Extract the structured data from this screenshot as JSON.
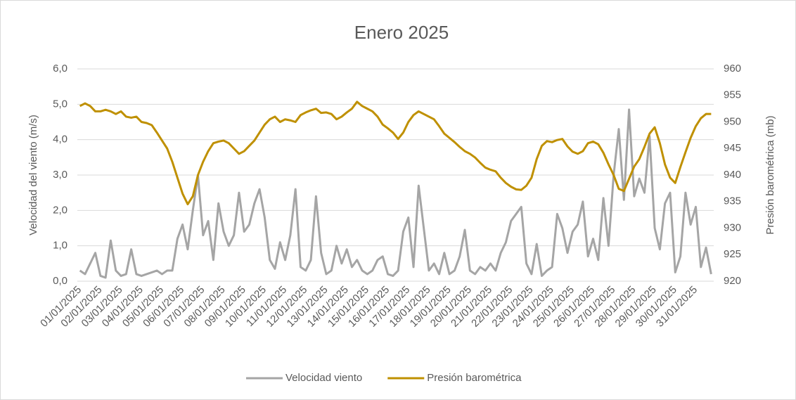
{
  "chart_data": {
    "type": "line",
    "title": "Enero 2025",
    "ylabel": "Velocidad del viento (m/s)",
    "y2label": "Presión barométrica (mb)",
    "categories": [
      "01/01/2025",
      null,
      null,
      null,
      "02/01/2025",
      null,
      null,
      null,
      "03/01/2025",
      null,
      null,
      null,
      "04/01/2025",
      null,
      null,
      null,
      "05/01/2025",
      null,
      null,
      null,
      "06/01/2025",
      null,
      null,
      null,
      "07/01/2025",
      null,
      null,
      null,
      "08/01/2025",
      null,
      null,
      null,
      "09/01/2025",
      null,
      null,
      null,
      "10/01/2025",
      null,
      null,
      null,
      "11/01/2025",
      null,
      null,
      null,
      "12/01/2025",
      null,
      null,
      null,
      "13/01/2025",
      null,
      null,
      null,
      "14/01/2025",
      null,
      null,
      null,
      "15/01/2025",
      null,
      null,
      null,
      "16/01/2025",
      null,
      null,
      null,
      "17/01/2025",
      null,
      null,
      null,
      "18/01/2025",
      null,
      null,
      null,
      "19/01/2025",
      null,
      null,
      null,
      "20/01/2025",
      null,
      null,
      null,
      "21/01/2025",
      null,
      null,
      null,
      "22/01/2025",
      null,
      null,
      null,
      "23/01/2025",
      null,
      null,
      null,
      "24/01/2025",
      null,
      null,
      null,
      "25/01/2025",
      null,
      null,
      null,
      "26/01/2025",
      null,
      null,
      null,
      "27/01/2025",
      null,
      null,
      null,
      "28/01/2025",
      null,
      null,
      null,
      "29/01/2025",
      null,
      null,
      null,
      "30/01/2025",
      null,
      null,
      null,
      "31/01/2025",
      null,
      null,
      null
    ],
    "series": [
      {
        "name": "Velocidad viento",
        "color": "#a5a5a5",
        "axis": "y",
        "values": [
          0.3,
          0.2,
          0.5,
          0.8,
          0.15,
          0.1,
          1.15,
          0.3,
          0.15,
          0.2,
          0.9,
          0.2,
          0.15,
          0.2,
          0.25,
          0.3,
          0.2,
          0.3,
          0.3,
          1.2,
          1.6,
          0.9,
          2.0,
          3.0,
          1.3,
          1.7,
          0.6,
          2.2,
          1.4,
          1.0,
          1.3,
          2.5,
          1.4,
          1.6,
          2.2,
          2.6,
          1.8,
          0.6,
          0.35,
          1.1,
          0.6,
          1.3,
          2.6,
          0.4,
          0.3,
          0.6,
          2.4,
          0.8,
          0.2,
          0.3,
          1.0,
          0.5,
          0.9,
          0.4,
          0.6,
          0.3,
          0.2,
          0.3,
          0.6,
          0.7,
          0.2,
          0.15,
          0.3,
          1.4,
          1.8,
          0.4,
          2.7,
          1.5,
          0.3,
          0.5,
          0.2,
          0.8,
          0.2,
          0.3,
          0.7,
          1.45,
          0.3,
          0.2,
          0.4,
          0.3,
          0.5,
          0.3,
          0.8,
          1.1,
          1.7,
          1.9,
          2.1,
          0.5,
          0.2,
          1.05,
          0.15,
          0.3,
          0.4,
          1.9,
          1.5,
          0.8,
          1.4,
          1.6,
          2.25,
          0.7,
          1.2,
          0.6,
          2.35,
          1.0,
          3.0,
          4.3,
          2.3,
          4.85,
          2.4,
          2.9,
          2.5,
          4.1,
          1.5,
          0.9,
          2.2,
          2.5,
          0.25,
          0.7,
          2.5,
          1.6,
          2.1,
          0.4,
          0.95,
          0.2
        ]
      },
      {
        "name": "Presión barométrica",
        "color": "#bf9000",
        "axis": "y2",
        "values": [
          953,
          953.5,
          953,
          952,
          952,
          952.3,
          952,
          951.5,
          952,
          951,
          950.8,
          951,
          950,
          949.8,
          949.4,
          948,
          946.5,
          945,
          942.5,
          939.5,
          936.5,
          934.5,
          936,
          940,
          942.5,
          944.5,
          946,
          946.3,
          946.5,
          946,
          945,
          944,
          944.5,
          945.5,
          946.5,
          948,
          949.5,
          950.5,
          951,
          950,
          950.5,
          950.3,
          950,
          951.3,
          951.8,
          952.2,
          952.5,
          951.7,
          951.8,
          951.5,
          950.5,
          951,
          951.8,
          952.5,
          953.8,
          953,
          952.5,
          952,
          951,
          949.5,
          948.8,
          948,
          946.8,
          948,
          950,
          951.3,
          952,
          951.5,
          951,
          950.5,
          949.2,
          947.8,
          947,
          946.2,
          945.3,
          944.5,
          944,
          943.3,
          942.3,
          941.4,
          941,
          940.7,
          939.5,
          938.5,
          937.8,
          937.3,
          937.2,
          938,
          939.5,
          943,
          945.5,
          946.4,
          946.2,
          946.6,
          946.8,
          945.4,
          944.4,
          944,
          944.5,
          946,
          946.3,
          945.8,
          944.2,
          942,
          940,
          937.4,
          937,
          939.3,
          941.6,
          943,
          945.3,
          947.8,
          949,
          946,
          942,
          939.5,
          938.5,
          941.5,
          944.3,
          947,
          949.2,
          950.7,
          951.5,
          951.5
        ]
      }
    ],
    "ylim": [
      0,
      6
    ],
    "yticks": [
      {
        "value": 0,
        "label": "0,0"
      },
      {
        "value": 1,
        "label": "1,0"
      },
      {
        "value": 2,
        "label": "2,0"
      },
      {
        "value": 3,
        "label": "3,0"
      },
      {
        "value": 4,
        "label": "4,0"
      },
      {
        "value": 5,
        "label": "5,0"
      },
      {
        "value": 6,
        "label": "6,0"
      }
    ],
    "y2lim": [
      920,
      960
    ],
    "y2ticks": [
      920,
      925,
      930,
      935,
      940,
      945,
      950,
      955,
      960
    ],
    "grid": true,
    "legend": "bottom"
  }
}
